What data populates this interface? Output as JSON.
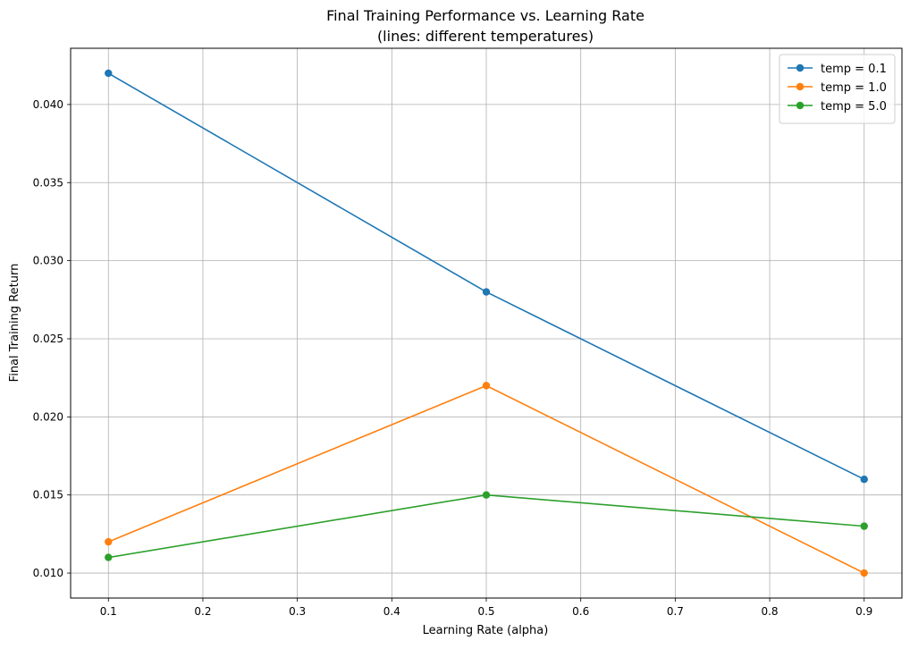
{
  "chart_data": {
    "type": "line",
    "title": "Final Training Performance vs. Learning Rate",
    "subtitle": "(lines: different temperatures)",
    "xlabel": "Learning Rate (alpha)",
    "ylabel": "Final Training Return",
    "x": [
      0.1,
      0.5,
      0.9
    ],
    "series": [
      {
        "name": "temp = 0.1",
        "color": "#1f77b4",
        "values": [
          0.042,
          0.028,
          0.016
        ]
      },
      {
        "name": "temp = 1.0",
        "color": "#ff7f0e",
        "values": [
          0.012,
          0.022,
          0.01
        ]
      },
      {
        "name": "temp = 5.0",
        "color": "#2ca02c",
        "values": [
          0.011,
          0.015,
          0.013
        ]
      }
    ],
    "xlim": [
      0.06,
      0.94
    ],
    "ylim": [
      0.0084,
      0.0436
    ],
    "xticks": [
      "0.1",
      "0.2",
      "0.3",
      "0.4",
      "0.5",
      "0.6",
      "0.7",
      "0.8",
      "0.9"
    ],
    "yticks": [
      "0.010",
      "0.015",
      "0.020",
      "0.025",
      "0.030",
      "0.035",
      "0.040"
    ],
    "grid": true,
    "legend_position": "top-right",
    "marker": "circle"
  }
}
